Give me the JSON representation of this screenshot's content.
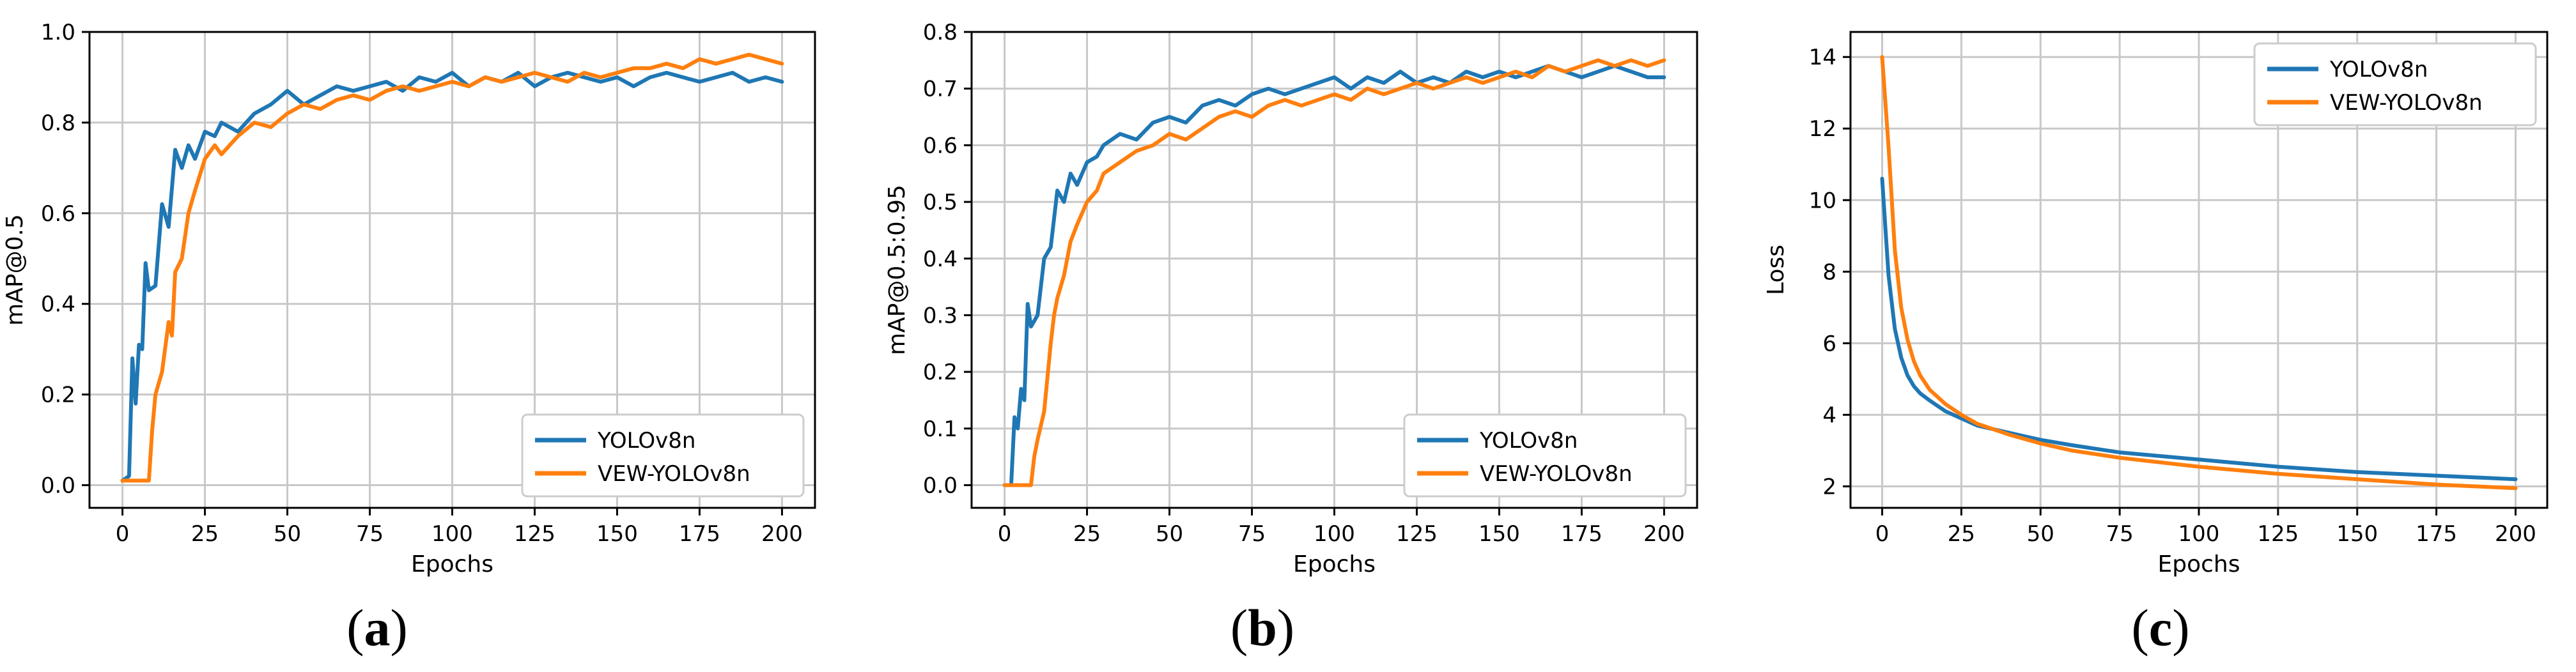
{
  "colors": {
    "series_1": "#1f77b4",
    "series_2": "#ff7f0e",
    "grid": "#c8c8c8",
    "axis": "#000000"
  },
  "chart_data": [
    {
      "type": "line",
      "panel_label": "a",
      "title": "",
      "xlabel": "Epochs",
      "ylabel": "mAP@0.5",
      "xlim": [
        -10,
        210
      ],
      "ylim": [
        -0.05,
        1.0
      ],
      "xticks": [
        0,
        25,
        50,
        75,
        100,
        125,
        150,
        175,
        200
      ],
      "yticks": [
        0.0,
        0.2,
        0.4,
        0.6,
        0.8,
        1.0
      ],
      "ytick_labels": [
        "0.0",
        "0.2",
        "0.4",
        "0.6",
        "0.8",
        "1.0"
      ],
      "grid": true,
      "legend_position": "lower-right",
      "series": [
        {
          "name": "YOLOv8n",
          "color": "#1f77b4",
          "x": [
            0,
            2,
            3,
            4,
            5,
            6,
            7,
            8,
            10,
            12,
            14,
            16,
            18,
            20,
            22,
            25,
            28,
            30,
            35,
            40,
            45,
            50,
            55,
            60,
            65,
            70,
            75,
            80,
            85,
            90,
            95,
            100,
            105,
            110,
            115,
            120,
            125,
            130,
            135,
            140,
            145,
            150,
            155,
            160,
            165,
            170,
            175,
            180,
            185,
            190,
            195,
            200
          ],
          "y": [
            0.01,
            0.02,
            0.28,
            0.18,
            0.31,
            0.3,
            0.49,
            0.43,
            0.44,
            0.62,
            0.57,
            0.74,
            0.7,
            0.75,
            0.72,
            0.78,
            0.77,
            0.8,
            0.78,
            0.82,
            0.84,
            0.87,
            0.84,
            0.86,
            0.88,
            0.87,
            0.88,
            0.89,
            0.87,
            0.9,
            0.89,
            0.91,
            0.88,
            0.9,
            0.89,
            0.91,
            0.88,
            0.9,
            0.91,
            0.9,
            0.89,
            0.9,
            0.88,
            0.9,
            0.91,
            0.9,
            0.89,
            0.9,
            0.91,
            0.89,
            0.9,
            0.89
          ]
        },
        {
          "name": "VEW-YOLOv8n",
          "color": "#ff7f0e",
          "x": [
            0,
            2,
            4,
            6,
            8,
            9,
            10,
            12,
            14,
            15,
            16,
            18,
            20,
            22,
            25,
            28,
            30,
            35,
            40,
            45,
            50,
            55,
            60,
            65,
            70,
            75,
            80,
            85,
            90,
            95,
            100,
            105,
            110,
            115,
            120,
            125,
            130,
            135,
            140,
            145,
            150,
            155,
            160,
            165,
            170,
            175,
            180,
            185,
            190,
            195,
            200
          ],
          "y": [
            0.01,
            0.01,
            0.01,
            0.01,
            0.01,
            0.12,
            0.2,
            0.25,
            0.36,
            0.33,
            0.47,
            0.5,
            0.6,
            0.65,
            0.72,
            0.75,
            0.73,
            0.77,
            0.8,
            0.79,
            0.82,
            0.84,
            0.83,
            0.85,
            0.86,
            0.85,
            0.87,
            0.88,
            0.87,
            0.88,
            0.89,
            0.88,
            0.9,
            0.89,
            0.9,
            0.91,
            0.9,
            0.89,
            0.91,
            0.9,
            0.91,
            0.92,
            0.92,
            0.93,
            0.92,
            0.94,
            0.93,
            0.94,
            0.95,
            0.94,
            0.93
          ]
        }
      ]
    },
    {
      "type": "line",
      "panel_label": "b",
      "title": "",
      "xlabel": "Epochs",
      "ylabel": "mAP@0.5:0.95",
      "xlim": [
        -10,
        210
      ],
      "ylim": [
        -0.04,
        0.8
      ],
      "xticks": [
        0,
        25,
        50,
        75,
        100,
        125,
        150,
        175,
        200
      ],
      "yticks": [
        0.0,
        0.1,
        0.2,
        0.3,
        0.4,
        0.5,
        0.6,
        0.7,
        0.8
      ],
      "ytick_labels": [
        "0.0",
        "0.1",
        "0.2",
        "0.3",
        "0.4",
        "0.5",
        "0.6",
        "0.7",
        "0.8"
      ],
      "grid": true,
      "legend_position": "lower-right",
      "series": [
        {
          "name": "YOLOv8n",
          "color": "#1f77b4",
          "x": [
            0,
            2,
            3,
            4,
            5,
            6,
            7,
            8,
            10,
            12,
            14,
            16,
            18,
            20,
            22,
            25,
            28,
            30,
            35,
            40,
            45,
            50,
            55,
            60,
            65,
            70,
            75,
            80,
            85,
            90,
            95,
            100,
            105,
            110,
            115,
            120,
            125,
            130,
            135,
            140,
            145,
            150,
            155,
            160,
            165,
            170,
            175,
            180,
            185,
            190,
            195,
            200
          ],
          "y": [
            0.0,
            0.0,
            0.12,
            0.1,
            0.17,
            0.15,
            0.32,
            0.28,
            0.3,
            0.4,
            0.42,
            0.52,
            0.5,
            0.55,
            0.53,
            0.57,
            0.58,
            0.6,
            0.62,
            0.61,
            0.64,
            0.65,
            0.64,
            0.67,
            0.68,
            0.67,
            0.69,
            0.7,
            0.69,
            0.7,
            0.71,
            0.72,
            0.7,
            0.72,
            0.71,
            0.73,
            0.71,
            0.72,
            0.71,
            0.73,
            0.72,
            0.73,
            0.72,
            0.73,
            0.74,
            0.73,
            0.72,
            0.73,
            0.74,
            0.73,
            0.72,
            0.72
          ]
        },
        {
          "name": "VEW-YOLOv8n",
          "color": "#ff7f0e",
          "x": [
            0,
            2,
            4,
            6,
            8,
            9,
            10,
            12,
            14,
            15,
            16,
            18,
            20,
            22,
            25,
            28,
            30,
            35,
            40,
            45,
            50,
            55,
            60,
            65,
            70,
            75,
            80,
            85,
            90,
            95,
            100,
            105,
            110,
            115,
            120,
            125,
            130,
            135,
            140,
            145,
            150,
            155,
            160,
            165,
            170,
            175,
            180,
            185,
            190,
            195,
            200
          ],
          "y": [
            0.0,
            0.0,
            0.0,
            0.0,
            0.0,
            0.05,
            0.08,
            0.13,
            0.25,
            0.3,
            0.33,
            0.37,
            0.43,
            0.46,
            0.5,
            0.52,
            0.55,
            0.57,
            0.59,
            0.6,
            0.62,
            0.61,
            0.63,
            0.65,
            0.66,
            0.65,
            0.67,
            0.68,
            0.67,
            0.68,
            0.69,
            0.68,
            0.7,
            0.69,
            0.7,
            0.71,
            0.7,
            0.71,
            0.72,
            0.71,
            0.72,
            0.73,
            0.72,
            0.74,
            0.73,
            0.74,
            0.75,
            0.74,
            0.75,
            0.74,
            0.75
          ]
        }
      ]
    },
    {
      "type": "line",
      "panel_label": "c",
      "title": "",
      "xlabel": "Epochs",
      "ylabel": "Loss",
      "xlim": [
        -10,
        210
      ],
      "ylim": [
        1.4,
        14.7
      ],
      "xticks": [
        0,
        25,
        50,
        75,
        100,
        125,
        150,
        175,
        200
      ],
      "yticks": [
        2,
        4,
        6,
        8,
        10,
        12,
        14
      ],
      "ytick_labels": [
        "2",
        "4",
        "6",
        "8",
        "10",
        "12",
        "14"
      ],
      "grid": true,
      "legend_position": "upper-right",
      "series": [
        {
          "name": "YOLOv8n",
          "color": "#1f77b4",
          "x": [
            0,
            2,
            4,
            6,
            8,
            10,
            12,
            15,
            20,
            25,
            30,
            40,
            50,
            60,
            75,
            100,
            125,
            150,
            175,
            200
          ],
          "y": [
            10.6,
            7.9,
            6.4,
            5.6,
            5.1,
            4.8,
            4.6,
            4.4,
            4.1,
            3.9,
            3.7,
            3.5,
            3.3,
            3.15,
            2.95,
            2.75,
            2.55,
            2.4,
            2.3,
            2.2
          ]
        },
        {
          "name": "VEW-YOLOv8n",
          "color": "#ff7f0e",
          "x": [
            0,
            2,
            4,
            6,
            8,
            10,
            12,
            15,
            20,
            25,
            30,
            40,
            50,
            60,
            75,
            100,
            125,
            150,
            175,
            200
          ],
          "y": [
            14.0,
            11.5,
            8.6,
            7.0,
            6.1,
            5.5,
            5.1,
            4.7,
            4.3,
            4.0,
            3.75,
            3.45,
            3.2,
            3.0,
            2.8,
            2.55,
            2.35,
            2.2,
            2.05,
            1.95
          ]
        }
      ]
    }
  ]
}
